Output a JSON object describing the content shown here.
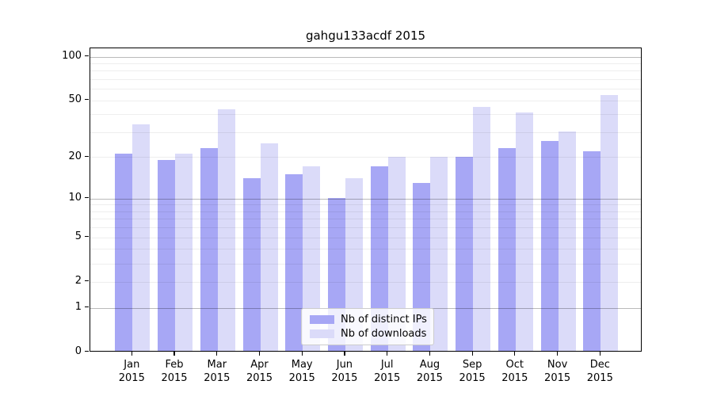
{
  "chart_data": {
    "type": "bar",
    "title": "gahgu133acdf 2015",
    "xlabel": "",
    "ylabel": "",
    "y_scale": "log1p",
    "ylim": [
      0,
      110
    ],
    "grid": true,
    "legend_position": "lower center",
    "categories": [
      "Jan 2015",
      "Feb 2015",
      "Mar 2015",
      "Apr 2015",
      "May 2015",
      "Jun 2015",
      "Jul 2015",
      "Aug 2015",
      "Sep 2015",
      "Oct 2015",
      "Nov 2015",
      "Dec 2015"
    ],
    "series": [
      {
        "name": "Nb of distinct IPs",
        "color": "#a7a7f5",
        "values": [
          21,
          19,
          23,
          14,
          15,
          10,
          17,
          13,
          20,
          23,
          26,
          22
        ]
      },
      {
        "name": "Nb of downloads",
        "color": "#dbdbf9",
        "values": [
          34,
          21,
          43,
          25,
          17,
          14,
          20,
          20,
          45,
          41,
          30,
          54
        ]
      }
    ],
    "y_tick_labels": [
      100,
      50,
      20,
      10,
      5,
      2,
      1,
      0
    ],
    "major_gridlines": [
      1,
      10,
      100
    ],
    "minor_gridlines": [
      2,
      3,
      4,
      5,
      6,
      7,
      8,
      9,
      20,
      30,
      40,
      50,
      60,
      70,
      80,
      90
    ]
  },
  "colors": {
    "background": "#ffffff",
    "axis": "#000000",
    "legend_border": "#cccccc"
  }
}
